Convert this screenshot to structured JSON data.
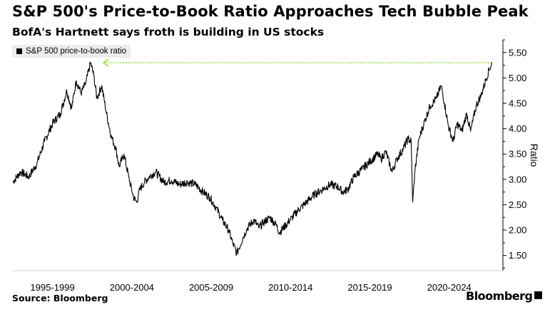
{
  "header": {
    "title": "S&P 500's Price-to-Book Ratio Approaches Tech Bubble Peak",
    "subtitle": "BofA's Hartnett says froth is building in US stocks"
  },
  "footer": {
    "source": "Source: Bloomberg",
    "brand": "Bloomberg"
  },
  "colors": {
    "line": "#000000",
    "annotation": "#8cd62a",
    "axis": "#000000"
  },
  "chart_data": {
    "type": "line",
    "legend": "S&P 500 price-to-book ratio",
    "legend_position": "top-left",
    "ylabel": "Ratio",
    "y_axis_side": "right",
    "ylim": [
      1.2,
      5.75
    ],
    "yticks": [
      1.5,
      2.0,
      2.5,
      3.0,
      3.5,
      4.0,
      4.5,
      5.0,
      5.5
    ],
    "ytick_labels": [
      "1.50",
      "2.00",
      "2.50",
      "3.00",
      "3.50",
      "4.00",
      "4.50",
      "5.00",
      "5.50"
    ],
    "xlim": [
      1995.0,
      2025.75
    ],
    "xtick_labels": [
      "1995-1999",
      "2000-2004",
      "2005-2009",
      "2010-2014",
      "2015-2019",
      "2020-2024"
    ],
    "xtick_centers": [
      1997.5,
      2002.5,
      2007.5,
      2012.5,
      2017.5,
      2022.5
    ],
    "grid": false,
    "series": [
      {
        "x": [
          1995.0,
          1995.5,
          1996.0,
          1996.5,
          1997.0,
          1997.5,
          1998.0,
          1998.4,
          1998.7,
          1999.0,
          1999.3,
          1999.6,
          1999.9,
          2000.1,
          2000.3,
          2000.6,
          2000.9,
          2001.2,
          2001.5,
          2001.7,
          2002.0,
          2002.3,
          2002.6,
          2002.8,
          2003.0,
          2003.3,
          2003.6,
          2004.0,
          2004.5,
          2005.0,
          2005.5,
          2006.0,
          2006.5,
          2007.0,
          2007.4,
          2007.8,
          2008.2,
          2008.6,
          2008.85,
          2009.1,
          2009.2,
          2009.5,
          2009.8,
          2010.2,
          2010.5,
          2010.8,
          2011.2,
          2011.6,
          2011.8,
          2012.2,
          2012.6,
          2013.0,
          2013.5,
          2014.0,
          2014.5,
          2015.0,
          2015.5,
          2015.8,
          2016.1,
          2016.5,
          2017.0,
          2017.5,
          2018.0,
          2018.2,
          2018.5,
          2018.9,
          2019.2,
          2019.6,
          2019.9,
          2020.1,
          2020.2,
          2020.35,
          2020.6,
          2020.9,
          2021.3,
          2021.7,
          2022.0,
          2022.2,
          2022.45,
          2022.75,
          2023.0,
          2023.3,
          2023.6,
          2023.85,
          2024.2,
          2024.5,
          2024.8,
          2025.0,
          2025.2
        ],
        "values": [
          2.95,
          3.15,
          3.05,
          3.3,
          3.75,
          4.1,
          4.3,
          4.75,
          4.4,
          4.95,
          4.7,
          4.9,
          5.3,
          5.05,
          4.6,
          4.85,
          4.3,
          3.85,
          3.6,
          3.25,
          3.5,
          3.05,
          2.65,
          2.55,
          2.8,
          2.95,
          3.05,
          3.15,
          2.95,
          2.98,
          2.9,
          2.95,
          2.9,
          2.75,
          2.65,
          2.45,
          2.2,
          2.0,
          1.75,
          1.55,
          1.6,
          1.85,
          2.05,
          2.2,
          2.05,
          2.15,
          2.25,
          2.1,
          1.95,
          2.1,
          2.25,
          2.4,
          2.55,
          2.7,
          2.8,
          2.9,
          2.85,
          2.75,
          2.8,
          3.05,
          3.2,
          3.35,
          3.5,
          3.4,
          3.55,
          3.15,
          3.4,
          3.6,
          3.8,
          3.75,
          2.55,
          3.2,
          3.8,
          4.1,
          4.45,
          4.6,
          4.85,
          4.5,
          4.05,
          3.75,
          4.1,
          3.95,
          4.3,
          3.95,
          4.45,
          4.65,
          4.95,
          5.15,
          5.3
        ]
      }
    ],
    "annotation": {
      "type": "arrow",
      "from_x": 2025.2,
      "to_x": 1999.9,
      "y": 5.3
    }
  }
}
